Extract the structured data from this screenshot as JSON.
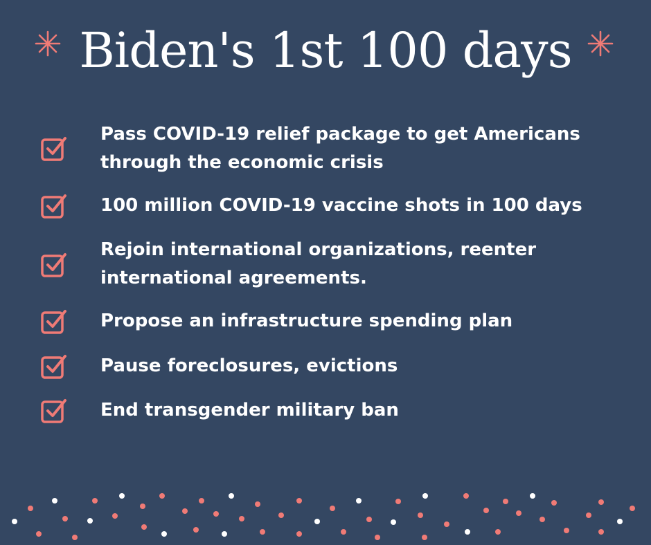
{
  "title": "Biden's 1st 100 days",
  "accent_color": "#f07b76",
  "background_color": "#344762",
  "icons": {
    "sparkle": "asterisk-sparkle-icon",
    "checkbox": "checked-box-icon"
  },
  "items": [
    {
      "text": "Pass COVID-19 relief package to get Americans through the economic crisis"
    },
    {
      "text": "100 million COVID-19 vaccine shots in 100 days"
    },
    {
      "text": "Rejoin international organizations, reenter international agreements."
    },
    {
      "text": "Propose an infrastructure spending plan"
    },
    {
      "text": "Pause foreclosures, evictions"
    },
    {
      "text": "End transgender military ban"
    }
  ]
}
